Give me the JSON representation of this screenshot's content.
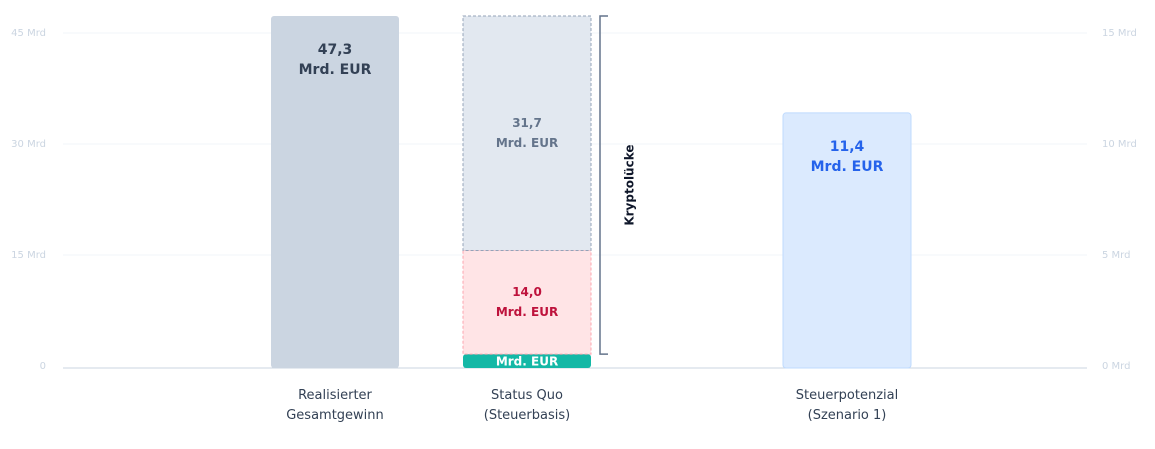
{
  "chart_data": {
    "type": "bar",
    "stacked": true,
    "categories": [
      "Realisierter\nGesamtgewinn",
      "Status Quo\n(Steuerbasis)",
      "Steuerpotenzial\n(Szenario 1)"
    ],
    "unit_label": "Mrd. EUR",
    "annotation": "Kryptolücke",
    "series": [
      {
        "color": "#cbd5e1",
        "text_color": "#334155",
        "values": [
          47.3,
          null,
          null
        ],
        "value_labels": [
          "47,3",
          null,
          null
        ]
      },
      {
        "color": "#14b8a6",
        "text_color": "#ffffff",
        "values": [
          null,
          1.6,
          null
        ]
      },
      {
        "color": "#ffe4e6",
        "text_color": "#be123c",
        "dashed": true,
        "values": [
          null,
          14.0,
          null
        ],
        "value_labels": [
          null,
          "14,0",
          null
        ]
      },
      {
        "color": "#e2e8f0",
        "text_color": "#64748b",
        "dashed": true,
        "values": [
          null,
          31.7,
          null
        ],
        "value_labels": [
          null,
          "31,7",
          null
        ]
      },
      {
        "color": "#dbeafe",
        "text_color": "#2563eb",
        "axis": "y2",
        "values": [
          null,
          null,
          11.4
        ],
        "value_labels": [
          null,
          null,
          "11,4"
        ]
      }
    ],
    "ylim": [
      0,
      45
    ],
    "yticks": [
      0,
      {
        "value": 15,
        "label": "15 Mrd"
      },
      {
        "value": 30,
        "label": "30 Mrd"
      },
      {
        "value": 45,
        "label": "45 Mrd"
      }
    ],
    "y2lim": [
      0,
      15
    ],
    "y2ticks": [
      {
        "value": 0,
        "label": "0 Mrd"
      },
      {
        "value": 5,
        "label": "5 Mrd"
      },
      {
        "value": 10,
        "label": "10 Mrd"
      },
      {
        "value": 15,
        "label": "15 Mrd"
      }
    ],
    "grid": true
  }
}
